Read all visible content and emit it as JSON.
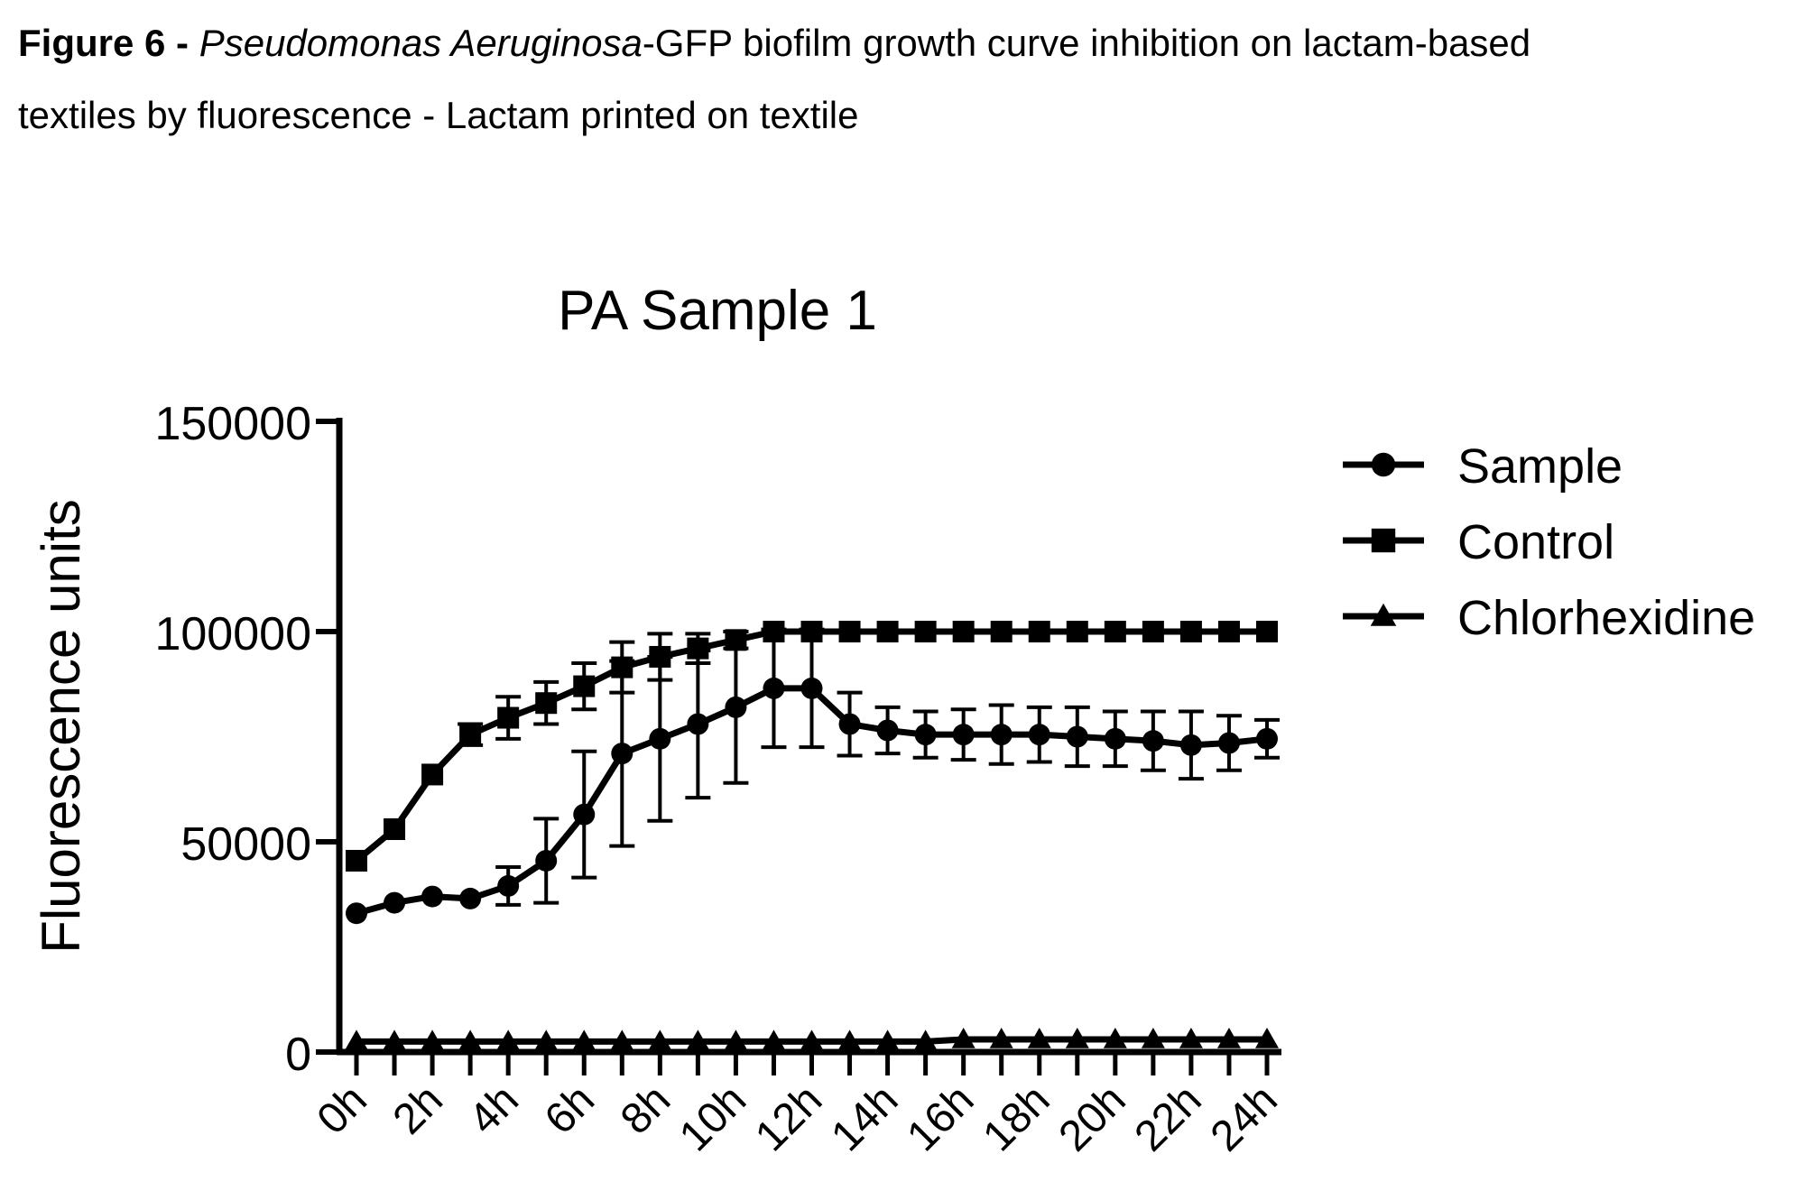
{
  "caption": {
    "label": "Figure 6 -",
    "organism": "Pseudomonas Aeruginosa",
    "line1_rest": "-GFP biofilm growth curve inhibition on lactam-based",
    "line2": "textiles by fluorescence - Lactam printed on textile"
  },
  "chart_data": {
    "type": "line",
    "title": "PA Sample 1",
    "xlabel": "",
    "ylabel": "Fluorescence units",
    "ylim": [
      0,
      150000
    ],
    "yticks": [
      0,
      50000,
      100000,
      150000
    ],
    "x": [
      0,
      1,
      2,
      3,
      4,
      5,
      6,
      7,
      8,
      9,
      10,
      11,
      12,
      13,
      14,
      15,
      16,
      17,
      18,
      19,
      20,
      21,
      22,
      23,
      24
    ],
    "xticks": [
      "0h",
      "2h",
      "4h",
      "6h",
      "8h",
      "10h",
      "12h",
      "14h",
      "16h",
      "18h",
      "20h",
      "22h",
      "24h"
    ],
    "xtick_values": [
      0,
      2,
      4,
      6,
      8,
      10,
      12,
      14,
      16,
      18,
      20,
      22,
      24
    ],
    "legend_position": "right",
    "grid": false,
    "colors": {
      "line": "#000000",
      "background": "#ffffff"
    },
    "series": [
      {
        "name": "Sample",
        "marker": "circle",
        "values": [
          33000,
          35500,
          37000,
          36500,
          39500,
          45500,
          56500,
          71000,
          74500,
          78000,
          82000,
          86500,
          86500,
          78000,
          76500,
          75500,
          75500,
          75500,
          75500,
          75000,
          74500,
          74000,
          73000,
          73500,
          74500
        ],
        "errors": [
          0,
          0,
          0,
          0,
          4500,
          10000,
          15000,
          22000,
          19500,
          17500,
          18000,
          14000,
          14000,
          7500,
          5500,
          5500,
          6000,
          7000,
          6500,
          7000,
          6500,
          7000,
          8000,
          6500,
          4500
        ]
      },
      {
        "name": "Control",
        "marker": "square",
        "values": [
          45500,
          53000,
          66000,
          75500,
          79500,
          83000,
          87000,
          91500,
          94000,
          96000,
          98000,
          100000,
          100000,
          100000,
          100000,
          100000,
          100000,
          100000,
          100000,
          100000,
          100000,
          100000,
          100000,
          100000,
          100000
        ],
        "errors": [
          0,
          0,
          0,
          2500,
          5000,
          5000,
          5500,
          6000,
          5500,
          3500,
          2000,
          0,
          0,
          0,
          0,
          0,
          0,
          0,
          0,
          0,
          0,
          0,
          0,
          0,
          0
        ]
      },
      {
        "name": "Chlorhexidine",
        "marker": "triangle",
        "values": [
          2500,
          2500,
          2500,
          2500,
          2500,
          2500,
          2500,
          2500,
          2500,
          2500,
          2500,
          2500,
          2500,
          2500,
          2500,
          2500,
          3000,
          3000,
          3000,
          3000,
          3000,
          3000,
          3000,
          3000,
          3000
        ],
        "errors": [
          0,
          0,
          0,
          0,
          0,
          0,
          0,
          0,
          0,
          0,
          0,
          0,
          0,
          0,
          0,
          0,
          0,
          0,
          0,
          0,
          0,
          0,
          0,
          0,
          0
        ]
      }
    ]
  }
}
